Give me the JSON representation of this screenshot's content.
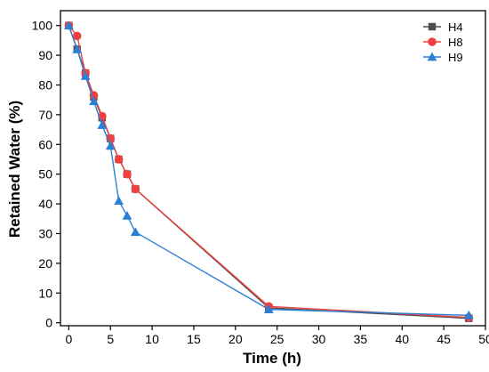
{
  "chart_data": {
    "type": "line",
    "xlabel": "Time (h)",
    "ylabel": "Retained Water (%)",
    "xlim": [
      -1,
      50
    ],
    "ylim": [
      -1,
      105
    ],
    "xticks": [
      0,
      5,
      10,
      15,
      20,
      25,
      30,
      35,
      40,
      45,
      50
    ],
    "yticks": [
      0,
      10,
      20,
      30,
      40,
      50,
      60,
      70,
      80,
      90,
      100
    ],
    "legend_position": "top-right",
    "grid": false,
    "series": [
      {
        "name": "H4",
        "color": "#4d4d4d",
        "marker": "square",
        "x": [
          0,
          1,
          2,
          3,
          4,
          5,
          6,
          7,
          8,
          24,
          48
        ],
        "y": [
          100,
          92,
          84,
          76,
          69,
          62,
          55,
          50,
          45,
          5,
          1.5
        ]
      },
      {
        "name": "H8",
        "color": "#f0403f",
        "marker": "circle",
        "x": [
          0,
          1,
          2,
          3,
          4,
          5,
          6,
          7,
          8,
          24,
          48
        ],
        "y": [
          100,
          96.5,
          84,
          76.5,
          69.5,
          62,
          55,
          50,
          45,
          5.5,
          1.8
        ]
      },
      {
        "name": "H9",
        "color": "#2b80d6",
        "marker": "triangle",
        "x": [
          0,
          1,
          2,
          3,
          4,
          5,
          6,
          7,
          8,
          24,
          48
        ],
        "y": [
          100,
          92,
          83,
          74.5,
          66.5,
          59.5,
          41,
          36,
          30.5,
          4.5,
          2.5
        ]
      }
    ]
  }
}
